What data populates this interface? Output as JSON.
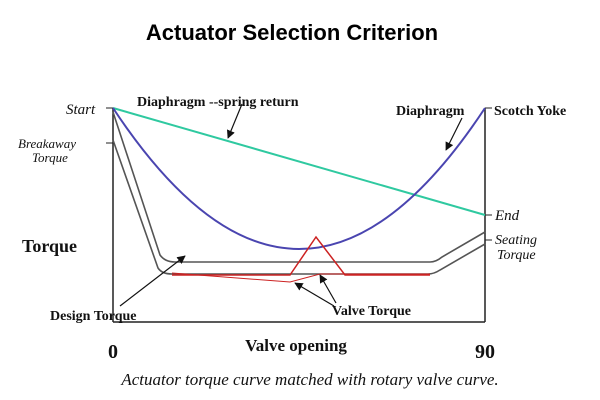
{
  "title": "Actuator Selection Criterion",
  "caption": "Actuator torque curve matched with rotary valve curve.",
  "axes": {
    "y_label": "Torque",
    "x_label": "Valve opening",
    "x_start": "0",
    "x_end": "90"
  },
  "labels": {
    "start": "Start",
    "breakaway_line1": "Breakaway",
    "breakaway_line2": "Torque",
    "end": "End",
    "seating_line1": "Seating",
    "seating_line2": "Torque",
    "diaphragm_spring": "Diaphragm --spring return",
    "diaphragm_scotch": "Diaphragm",
    "scotch_yoke": "Scotch Yoke",
    "design_torque": "Design Torque",
    "valve_torque": "Valve Torque"
  },
  "colors": {
    "spring_line": "#2fc9a0",
    "scotch_curve": "#4a45b0",
    "design_curve": "#555555",
    "valve_curve": "#cc2222",
    "axis": "#222222"
  }
}
